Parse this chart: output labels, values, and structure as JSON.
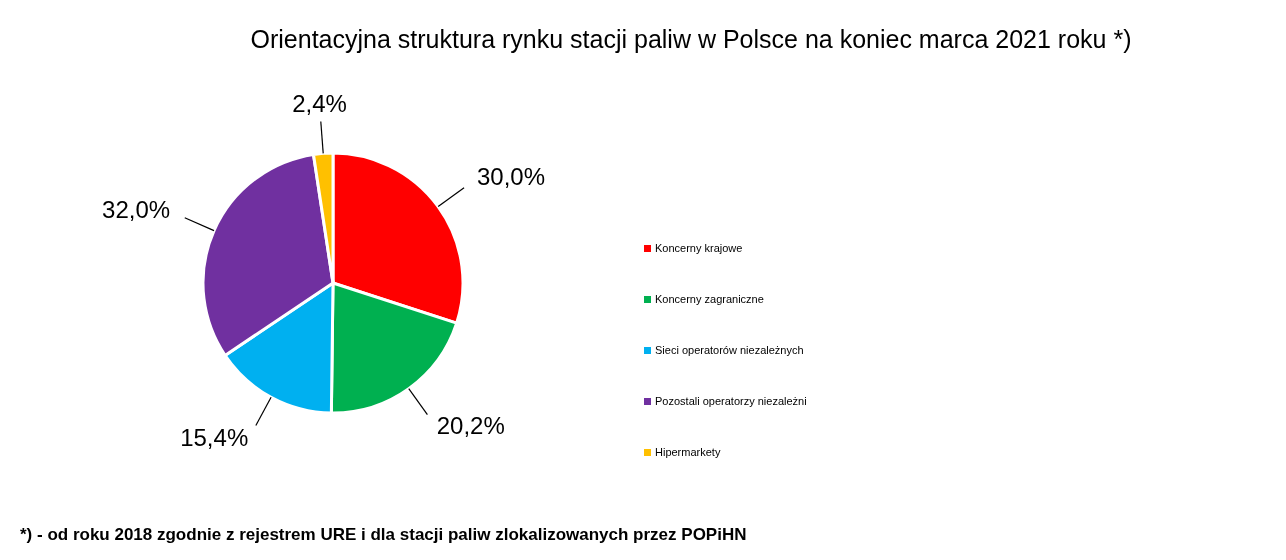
{
  "chart_data": {
    "type": "pie",
    "title": "Orientacyjna struktura rynku stacji paliw w Polsce na koniec marca 2021 roku *)",
    "categories": [
      "Koncerny krajowe",
      "Koncerny zagraniczne",
      "Sieci operatorów niezależnych",
      "Pozostali operatorzy niezależni",
      "Hipermarkety"
    ],
    "values": [
      30.0,
      20.2,
      15.4,
      32.0,
      2.4
    ],
    "colors": [
      "#ff0000",
      "#00b050",
      "#00b0f0",
      "#7030a0",
      "#ffc000"
    ],
    "value_labels": [
      "30,0%",
      "20,2%",
      "15,4%",
      "32,0%",
      "2,4%"
    ],
    "legend": "right",
    "annotations": [
      "*) - od roku 2018 zgodnie z rejestrem URE i dla stacji paliw zlokalizowanych przez POPiHN"
    ]
  }
}
